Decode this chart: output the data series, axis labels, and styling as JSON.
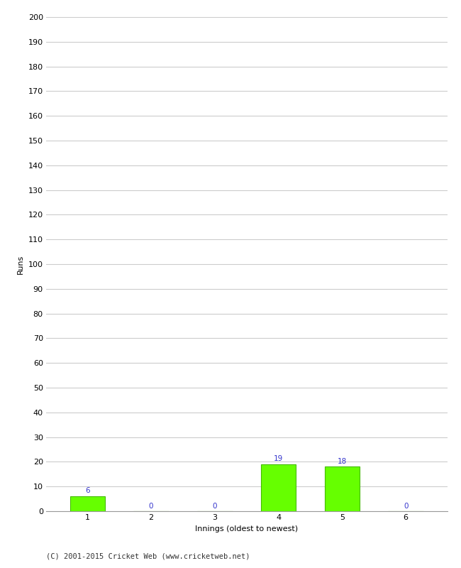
{
  "categories": [
    1,
    2,
    3,
    4,
    5,
    6
  ],
  "values": [
    6,
    0,
    0,
    19,
    18,
    0
  ],
  "bar_color": "#66ff00",
  "bar_edge_color": "#44bb00",
  "label_color": "#3333cc",
  "xlabel": "Innings (oldest to newest)",
  "ylabel": "Runs",
  "ylim": [
    0,
    200
  ],
  "yticks": [
    0,
    10,
    20,
    30,
    40,
    50,
    60,
    70,
    80,
    90,
    100,
    110,
    120,
    130,
    140,
    150,
    160,
    170,
    180,
    190,
    200
  ],
  "footer": "(C) 2001-2015 Cricket Web (www.cricketweb.net)",
  "background_color": "#ffffff",
  "grid_color": "#cccccc",
  "label_fontsize": 7.5,
  "axis_tick_fontsize": 8,
  "axis_label_fontsize": 8,
  "footer_fontsize": 7.5,
  "spine_color": "#999999"
}
